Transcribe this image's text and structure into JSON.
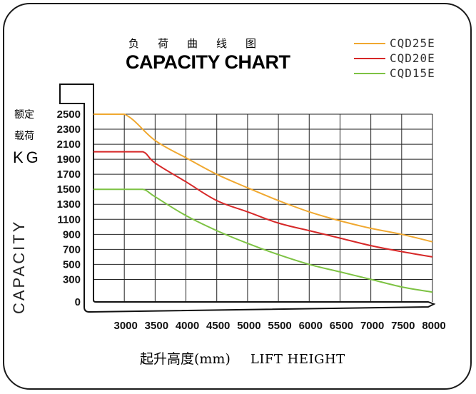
{
  "chart_data": {
    "type": "line",
    "title_cn": "负荷曲线图",
    "title": "CAPACITY CHART",
    "ylabel_cn_line1": "额定",
    "ylabel_cn_line2": "载荷",
    "ylabel_unit": "KG",
    "ylabel": "CAPACITY",
    "xlabel_cn": "起升高度(mm)",
    "xlabel": "LIFT HEIGHT",
    "x_ticks": [
      3000,
      3500,
      4000,
      4500,
      5000,
      5500,
      6000,
      6500,
      7000,
      7500,
      8000
    ],
    "y_ticks": [
      0,
      300,
      500,
      700,
      900,
      1100,
      1300,
      1500,
      1700,
      1900,
      2100,
      2300,
      2500
    ],
    "xlim": [
      2500,
      8000
    ],
    "ylim": [
      0,
      2500
    ],
    "grid": true,
    "legend_position": "top-right",
    "series": [
      {
        "name": "CQD25E",
        "color": "#f0a830",
        "x": [
          2500,
          3000,
          3500,
          4000,
          4500,
          5000,
          5500,
          6000,
          6500,
          7000,
          7500,
          8000
        ],
        "y": [
          2500,
          2500,
          2150,
          1920,
          1700,
          1520,
          1350,
          1200,
          1080,
          980,
          900,
          800
        ]
      },
      {
        "name": "CQD20E",
        "color": "#d62828",
        "x": [
          2500,
          3000,
          3300,
          3500,
          4000,
          4500,
          5000,
          5500,
          6000,
          6500,
          7000,
          7500,
          8000
        ],
        "y": [
          2000,
          2000,
          2000,
          1850,
          1600,
          1350,
          1200,
          1050,
          950,
          850,
          750,
          670,
          600
        ]
      },
      {
        "name": "CQD15E",
        "color": "#7dc243",
        "x": [
          2500,
          3000,
          3300,
          3500,
          4000,
          4500,
          5000,
          5500,
          6000,
          6500,
          7000,
          7500,
          8000
        ],
        "y": [
          1500,
          1500,
          1500,
          1400,
          1150,
          950,
          780,
          630,
          500,
          400,
          300,
          200,
          130
        ]
      }
    ]
  }
}
